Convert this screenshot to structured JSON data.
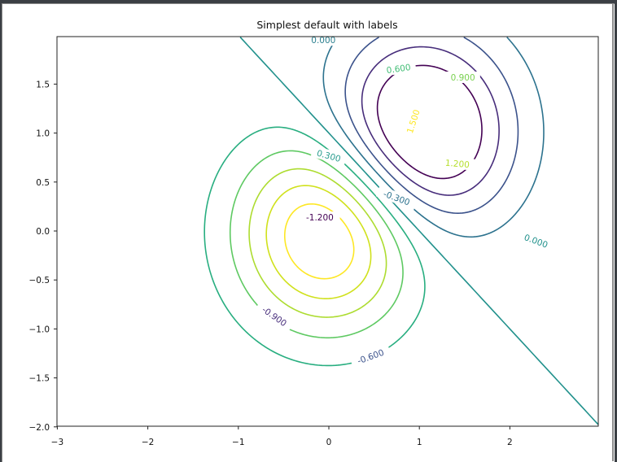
{
  "chart_data": {
    "type": "contour",
    "title": "Simplest default with labels",
    "function": "Z = 2*(exp(-x^2 - y^2) - exp(-(x-1)^2 - (y-1)^2))",
    "xlabel": "",
    "ylabel": "",
    "xlim": [
      -3,
      3
    ],
    "ylim": [
      -2,
      2
    ],
    "grid_step": 0.025,
    "x_ticks": [
      -3,
      -2,
      -1,
      0,
      1,
      2
    ],
    "x_tick_labels": [
      "−3",
      "−2",
      "−1",
      "0",
      "1",
      "2"
    ],
    "y_ticks": [
      -2.0,
      -1.5,
      -1.0,
      -0.5,
      0.0,
      0.5,
      1.0,
      1.5
    ],
    "y_tick_labels": [
      "−2.0",
      "−1.5",
      "−1.0",
      "−0.5",
      "0.0",
      "0.5",
      "1.0",
      "1.5"
    ],
    "grid": false,
    "colormap": "viridis",
    "levels": [
      {
        "value": -1.2,
        "label": "-1.200",
        "color": "#440154"
      },
      {
        "value": -0.9,
        "label": "-0.900",
        "color": "#472d7b"
      },
      {
        "value": -0.6,
        "label": "-0.600",
        "color": "#3b528b"
      },
      {
        "value": -0.3,
        "label": "-0.300",
        "color": "#2c728e"
      },
      {
        "value": 0.0,
        "label": "0.000",
        "color": "#21918c"
      },
      {
        "value": 0.3,
        "label": "0.300",
        "color": "#28ae80"
      },
      {
        "value": 0.6,
        "label": "0.600",
        "color": "#5ec962"
      },
      {
        "value": 0.9,
        "label": "0.900",
        "color": "#addc30"
      },
      {
        "value": 1.2,
        "label": "1.200",
        "color": "#d0e11c"
      },
      {
        "value": 1.5,
        "label": "1.500",
        "color": "#fde725"
      }
    ],
    "inline_labels": [
      {
        "text": "0.000",
        "x": -0.06,
        "y": 1.95,
        "angle": 0,
        "color": "#2a7f8e"
      },
      {
        "text": "0.600",
        "x": 0.77,
        "y": 1.66,
        "angle": -8,
        "color": "#3fbc73"
      },
      {
        "text": "0.900",
        "x": 1.48,
        "y": 1.57,
        "angle": 0,
        "color": "#7ad151"
      },
      {
        "text": "1.500",
        "x": 0.93,
        "y": 1.12,
        "angle": -72,
        "color": "#fde725"
      },
      {
        "text": "1.200",
        "x": 1.42,
        "y": 0.69,
        "angle": 5,
        "color": "#b5de2b"
      },
      {
        "text": "0.300",
        "x": 0.0,
        "y": 0.77,
        "angle": 15,
        "color": "#2a9d8f"
      },
      {
        "text": "-0.300",
        "x": 0.75,
        "y": 0.34,
        "angle": 20,
        "color": "#2c728e"
      },
      {
        "text": "0.000",
        "x": 2.29,
        "y": -0.1,
        "angle": 20,
        "color": "#21918c"
      },
      {
        "text": "-1.200",
        "x": -0.1,
        "y": 0.14,
        "angle": 0,
        "color": "#440154"
      },
      {
        "text": "-0.900",
        "x": -0.6,
        "y": -0.87,
        "angle": 35,
        "color": "#472d7b"
      },
      {
        "text": "-0.600",
        "x": 0.46,
        "y": -1.28,
        "angle": -20,
        "color": "#3b528b"
      }
    ]
  }
}
